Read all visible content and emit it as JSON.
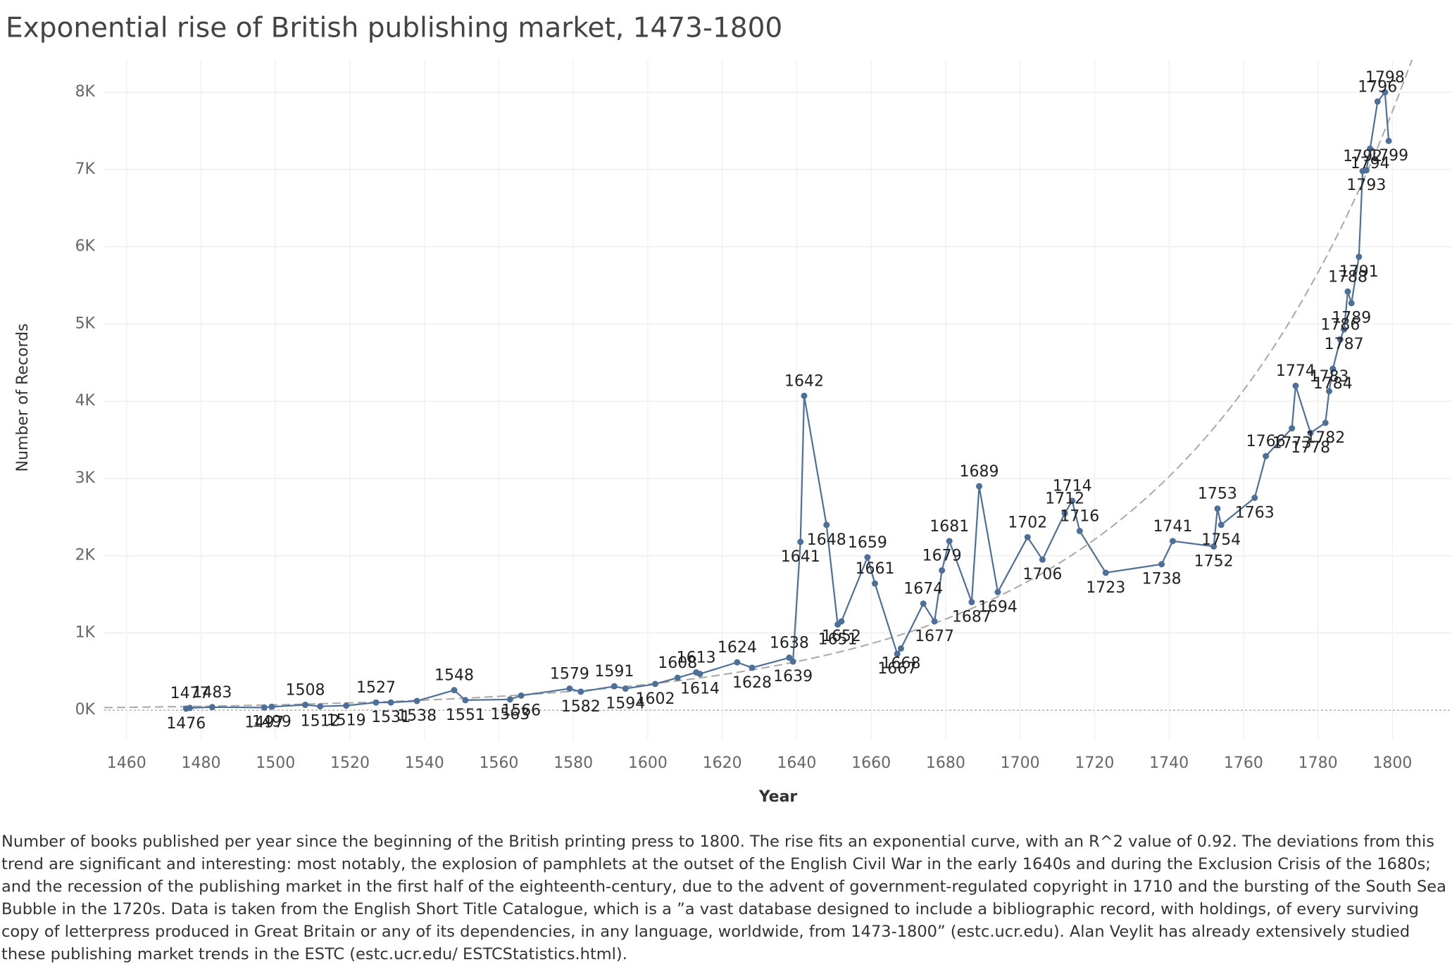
{
  "chart_data": {
    "type": "line",
    "title": "Exponential rise of British publishing market, 1473-1800",
    "x_label": "Year",
    "y_label": "Number of Records",
    "caption": "Number of books published per year since the beginning of the British printing press to 1800. The rise fits an exponential curve, with an R^2 value of 0.92. The deviations from this trend are significant and interesting: most notably, the explosion of pamphlets at the outset of the English Civil War in the early 1640s and during the Exclusion Crisis of the 1680s; and the recession of the publishing market in the first half of the eighteenth-century, due to the advent of government-regulated copyright in 1710 and the bursting of the South Sea Bubble in the 1720s. Data is taken from the English Short Title Catalogue, which is a ”a vast database designed to include a bibliographic record, with holdings, of every surviving copy of letterpress produced in Great Britain or any of its dependencies, in any language, worldwide, from 1473-1800” (estc.ucr.edu). Alan Veylit has already extensively studied these publishing market trends in the ESTC (estc.ucr.edu/ ESTCStatistics.html).",
    "color": "#4e6f98",
    "trendline": "exponential",
    "trendline_color": "#a8a8a8",
    "grid": true,
    "x": [
      1476,
      1477,
      1483,
      1497,
      1499,
      1508,
      1512,
      1519,
      1527,
      1531,
      1538,
      1548,
      1551,
      1563,
      1566,
      1579,
      1582,
      1591,
      1594,
      1602,
      1608,
      1613,
      1614,
      1624,
      1628,
      1638,
      1639,
      1641,
      1642,
      1648,
      1651,
      1652,
      1659,
      1661,
      1667,
      1668,
      1674,
      1677,
      1679,
      1681,
      1687,
      1689,
      1694,
      1702,
      1706,
      1712,
      1714,
      1716,
      1723,
      1738,
      1741,
      1752,
      1753,
      1754,
      1763,
      1766,
      1773,
      1774,
      1778,
      1782,
      1783,
      1784,
      1786,
      1787,
      1788,
      1789,
      1791,
      1792,
      1793,
      1794,
      1796,
      1798,
      1799
    ],
    "values": [
      20,
      30,
      40,
      35,
      45,
      70,
      50,
      60,
      100,
      100,
      120,
      260,
      130,
      140,
      190,
      280,
      240,
      310,
      280,
      340,
      420,
      490,
      470,
      620,
      550,
      680,
      630,
      2180,
      4070,
      2400,
      1110,
      1150,
      1980,
      1640,
      730,
      800,
      1380,
      1150,
      1810,
      2190,
      1400,
      2900,
      1530,
      2240,
      1950,
      2550,
      2710,
      2320,
      1780,
      1890,
      2190,
      2120,
      2610,
      2400,
      2750,
      3290,
      3650,
      4200,
      3590,
      3720,
      4130,
      4420,
      4800,
      4930,
      5420,
      5270,
      5870,
      6980,
      6990,
      7270,
      7880,
      8000,
      7370
    ],
    "xlim": [
      1454,
      1816
    ],
    "ylim": [
      -390,
      8420
    ],
    "xticks": [
      1460,
      1480,
      1500,
      1520,
      1540,
      1560,
      1580,
      1600,
      1620,
      1640,
      1660,
      1680,
      1700,
      1720,
      1740,
      1760,
      1780,
      1800
    ],
    "yticks": [
      {
        "value": 0,
        "label": "0K"
      },
      {
        "value": 1000,
        "label": "1K"
      },
      {
        "value": 2000,
        "label": "2K"
      },
      {
        "value": 3000,
        "label": "3K"
      },
      {
        "value": 4000,
        "label": "4K"
      },
      {
        "value": 5000,
        "label": "5K"
      },
      {
        "value": 6000,
        "label": "6K"
      },
      {
        "value": 7000,
        "label": "7K"
      },
      {
        "value": 8000,
        "label": "8K"
      }
    ]
  }
}
